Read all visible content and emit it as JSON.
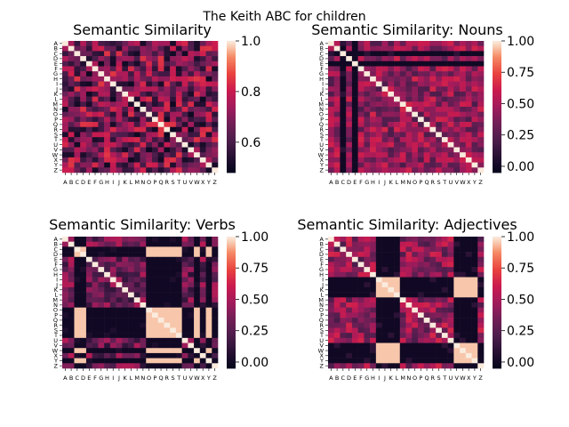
{
  "figure": {
    "suptitle": "The Keith ABC for children"
  },
  "chart_data": [
    {
      "type": "heatmap",
      "title": "Semantic Similarity",
      "xlabel": "",
      "ylabel": "",
      "labels": [
        "A",
        "B",
        "C",
        "D",
        "E",
        "F",
        "G",
        "H",
        "I",
        "J",
        "K",
        "L",
        "M",
        "N",
        "O",
        "P",
        "Q",
        "R",
        "S",
        "T",
        "U",
        "V",
        "W",
        "X",
        "Y",
        "Z"
      ],
      "colorbar": {
        "vmin": 0.48,
        "vmax": 1.0,
        "ticks": [
          "0.6",
          "0.8",
          "1.0"
        ],
        "tick_values": [
          0.6,
          0.8,
          1.0
        ]
      },
      "colormap": "rocket",
      "diagonal": 1.0,
      "typical_range": [
        0.5,
        0.85
      ],
      "rows_all_zero": []
    },
    {
      "type": "heatmap",
      "title": "Semantic Similarity: Nouns",
      "xlabel": "",
      "ylabel": "",
      "labels": [
        "A",
        "B",
        "C",
        "D",
        "E",
        "F",
        "G",
        "H",
        "I",
        "J",
        "K",
        "L",
        "M",
        "N",
        "O",
        "P",
        "Q",
        "R",
        "S",
        "T",
        "U",
        "V",
        "W",
        "X",
        "Y",
        "Z"
      ],
      "colorbar": {
        "vmin": -0.05,
        "vmax": 1.0,
        "ticks": [
          "0.00",
          "0.25",
          "0.50",
          "0.75",
          "1.00"
        ],
        "tick_values": [
          0.0,
          0.25,
          0.5,
          0.75,
          1.0
        ]
      },
      "colormap": "rocket",
      "diagonal": 1.0,
      "typical_range": [
        0.2,
        0.65
      ],
      "rows_all_zero": [
        "C",
        "E"
      ]
    },
    {
      "type": "heatmap",
      "title": "Semantic Similarity: Verbs",
      "xlabel": "",
      "ylabel": "",
      "labels": [
        "A",
        "B",
        "C",
        "D",
        "E",
        "F",
        "G",
        "H",
        "I",
        "J",
        "K",
        "L",
        "M",
        "N",
        "O",
        "P",
        "Q",
        "R",
        "S",
        "T",
        "U",
        "V",
        "W",
        "X",
        "Y",
        "Z"
      ],
      "colorbar": {
        "vmin": -0.05,
        "vmax": 1.0,
        "ticks": [
          "0.00",
          "0.25",
          "0.50",
          "0.75",
          "1.00"
        ],
        "tick_values": [
          0.0,
          0.25,
          0.5,
          0.75,
          1.0
        ]
      },
      "colormap": "rocket",
      "diagonal": 1.0,
      "typical_range": [
        0.1,
        0.55
      ],
      "rows_all_zero": [
        "C",
        "D",
        "O",
        "P",
        "Q",
        "R",
        "S",
        "T",
        "W",
        "Y"
      ]
    },
    {
      "type": "heatmap",
      "title": "Semantic Similarity: Adjectives",
      "xlabel": "",
      "ylabel": "",
      "labels": [
        "A",
        "B",
        "C",
        "D",
        "E",
        "F",
        "G",
        "H",
        "I",
        "J",
        "K",
        "L",
        "M",
        "N",
        "O",
        "P",
        "Q",
        "R",
        "S",
        "T",
        "U",
        "V",
        "W",
        "X",
        "Y",
        "Z"
      ],
      "colorbar": {
        "vmin": -0.05,
        "vmax": 1.0,
        "ticks": [
          "0.00",
          "0.25",
          "0.50",
          "0.75",
          "1.00"
        ],
        "tick_values": [
          0.0,
          0.25,
          0.5,
          0.75,
          1.0
        ]
      },
      "colormap": "rocket",
      "diagonal": 1.0,
      "typical_range": [
        0.2,
        0.65
      ],
      "rows_all_zero": [
        "I",
        "J",
        "K",
        "L",
        "V",
        "W",
        "X",
        "Y"
      ]
    }
  ]
}
